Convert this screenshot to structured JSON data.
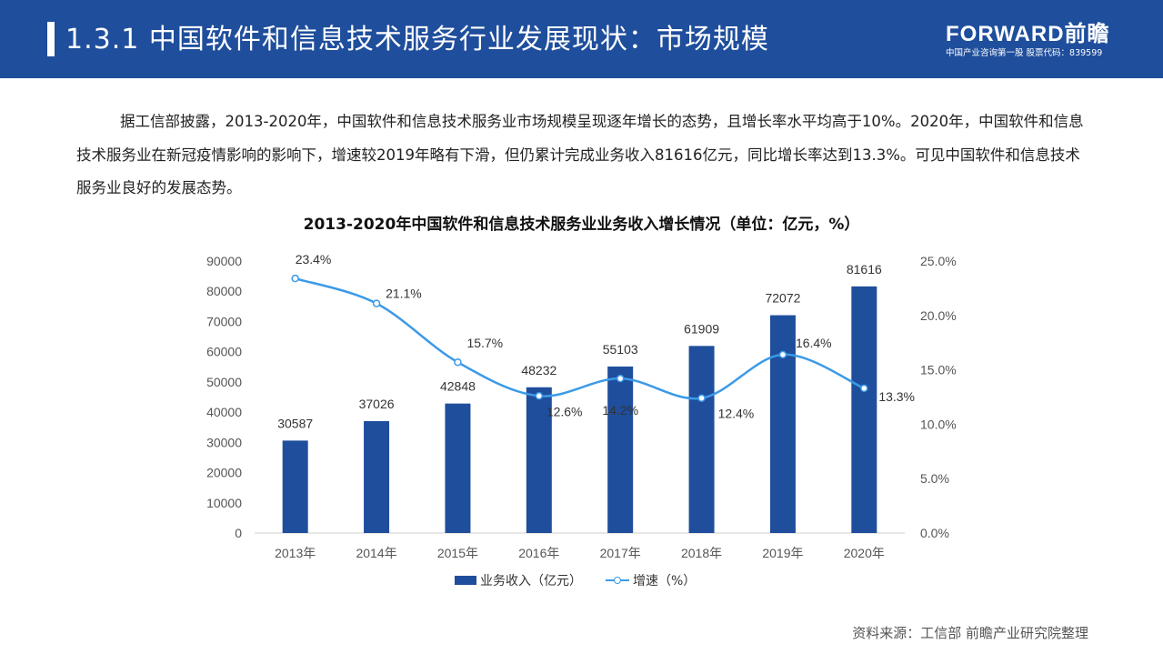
{
  "header": {
    "title": "1.3.1 中国软件和信息技术服务行业发展现状：市场规模",
    "logo_main": "FORWARD前瞻",
    "logo_sub": "中国产业咨询第一股  股票代码：839599"
  },
  "intro": "据工信部披露，2013-2020年，中国软件和信息技术服务业市场规模呈现逐年增长的态势，且增长率水平均高于10%。2020年，中国软件和信息技术服务业在新冠疫情影响的影响下，增速较2019年略有下滑，但仍累计完成业务收入81616亿元，同比增长率达到13.3%。可见中国软件和信息技术服务业良好的发展态势。",
  "source": "资料来源：工信部 前瞻产业研究院整理",
  "colors": {
    "header_bg": "#1f4e9c",
    "bar": "#1f4e9c",
    "line": "#3b9ae8"
  },
  "chart_data": {
    "type": "bar",
    "title": "2013-2020年中国软件和信息技术服务业业务收入增长情况（单位：亿元，%）",
    "categories": [
      "2013年",
      "2014年",
      "2015年",
      "2016年",
      "2017年",
      "2018年",
      "2019年",
      "2020年"
    ],
    "series": [
      {
        "name": "业务收入（亿元）",
        "type": "bar",
        "axis": "left",
        "values": [
          30587,
          37026,
          42848,
          48232,
          55103,
          61909,
          72072,
          81616
        ],
        "labels": [
          "30587",
          "37026",
          "42848",
          "48232",
          "55103",
          "61909",
          "72072",
          "81616"
        ]
      },
      {
        "name": "增速（%）",
        "type": "line",
        "axis": "right",
        "values": [
          23.4,
          21.1,
          15.7,
          12.6,
          14.2,
          12.4,
          16.4,
          13.3
        ],
        "labels": [
          "23.4%",
          "21.1%",
          "15.7%",
          "12.6%",
          "14.2%",
          "12.4%",
          "16.4%",
          "13.3%"
        ]
      }
    ],
    "y_left": {
      "min": 0,
      "max": 90000,
      "step": 10000,
      "ticks": [
        "0",
        "10000",
        "20000",
        "30000",
        "40000",
        "50000",
        "60000",
        "70000",
        "80000",
        "90000"
      ]
    },
    "y_right": {
      "min": 0,
      "max": 25,
      "step": 5,
      "ticks": [
        "0.0%",
        "5.0%",
        "10.0%",
        "15.0%",
        "20.0%",
        "25.0%"
      ]
    },
    "legend_position": "bottom",
    "grid": false
  }
}
